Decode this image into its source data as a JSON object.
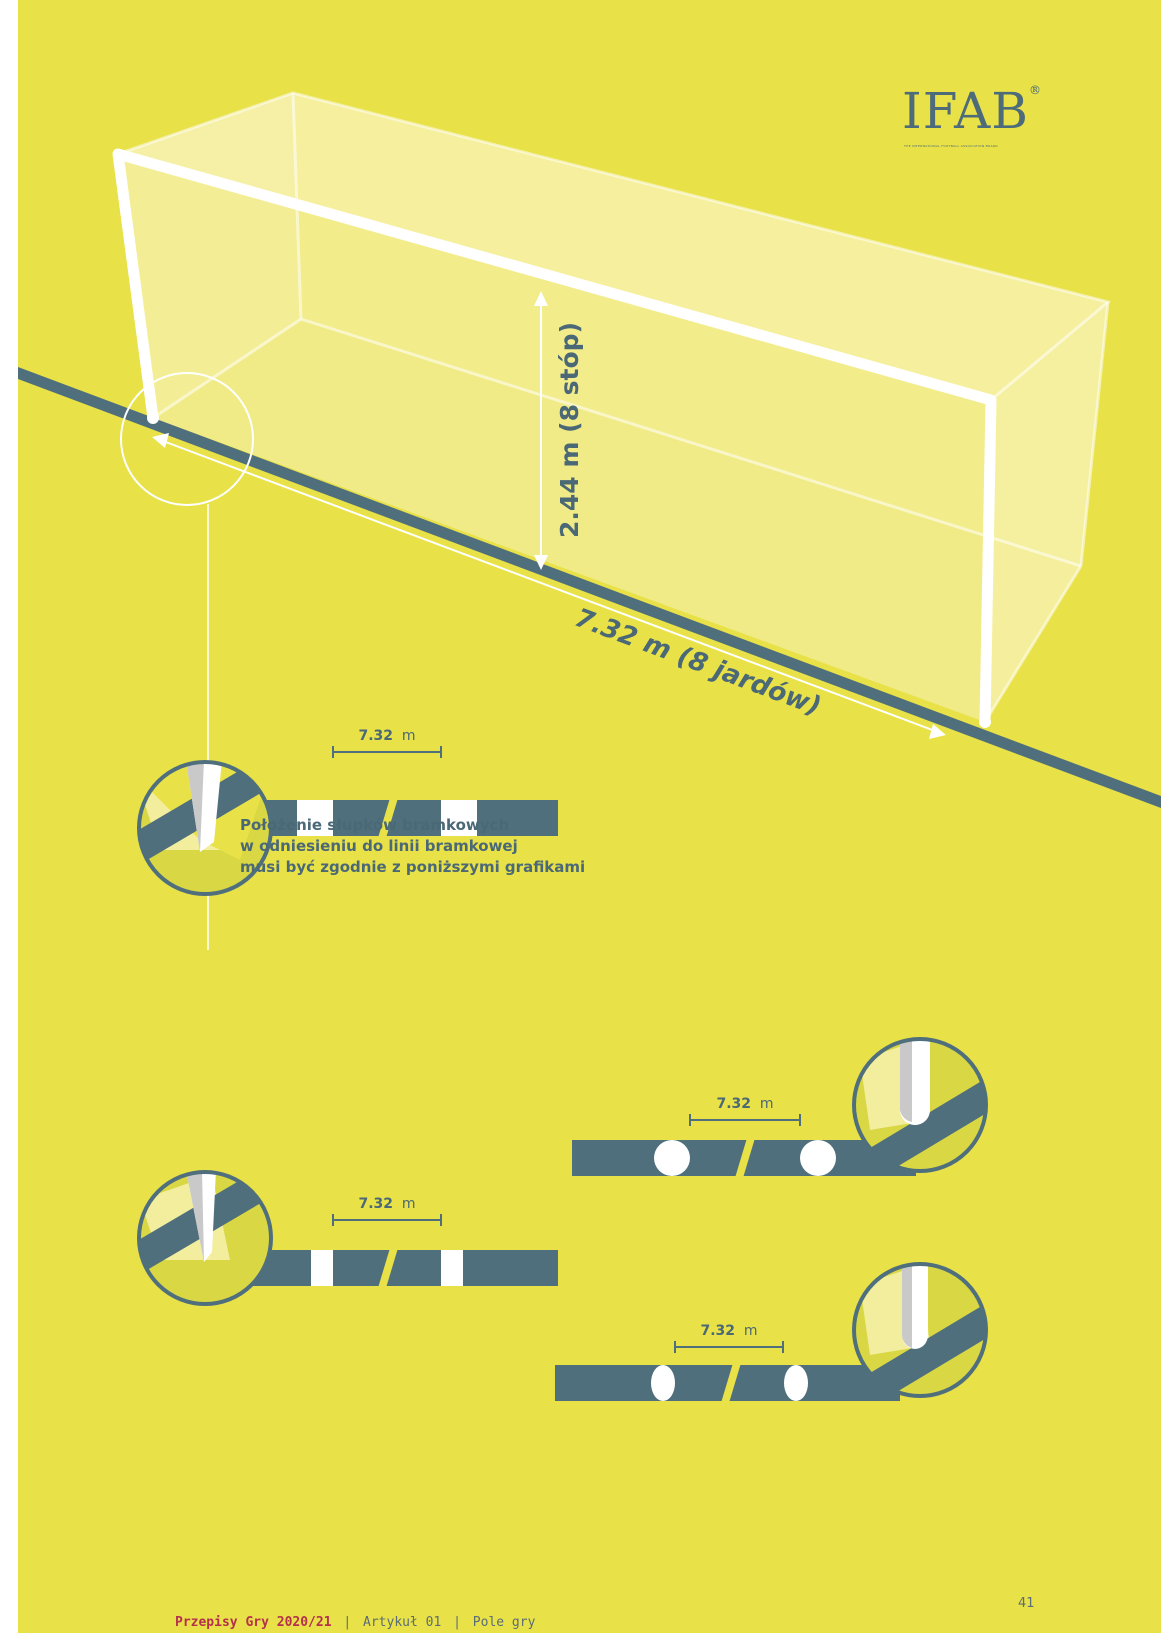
{
  "logo": {
    "text": "IFAB",
    "mark": "®",
    "subtitle": "THE INTERNATIONAL FOOTBALL ASSOCIATION BOARD"
  },
  "diagram": {
    "height_label": "2.44 m (8 stóp)",
    "width_label": "7.32 m (8 jardów)",
    "caption": [
      "Położenie słupków bramkowych",
      "w odniesieniu do linii bramkowej",
      "musi być zgodnie z poniższymi grafikami"
    ],
    "detail_labels": [
      {
        "value": "7.32",
        "unit": "m"
      },
      {
        "value": "7.32",
        "unit": "m"
      },
      {
        "value": "7.32",
        "unit": "m"
      },
      {
        "value": "7.32",
        "unit": "m"
      }
    ]
  },
  "colors": {
    "background": "#e8e147",
    "line": "#4f6f7c",
    "post": "#ffffff",
    "accent_red": "#b4314c"
  },
  "footer": {
    "publication": "Przepisy Gry 2020/21",
    "separator": "|",
    "article": "Artykuł 01",
    "section": "Pole gry",
    "page_number": "41"
  }
}
